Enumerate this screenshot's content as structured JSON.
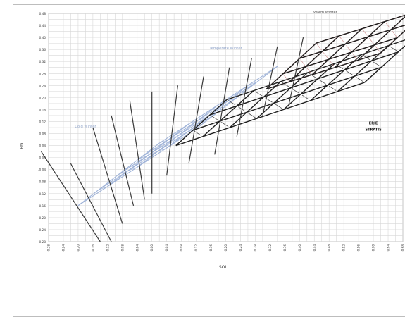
{
  "chart_data": {
    "type": "scatter",
    "title": "",
    "xlabel": "SOI",
    "ylabel": "Phi",
    "xlim": [
      -0.28,
      0.68
    ],
    "ylim": [
      -0.28,
      0.48
    ],
    "x_ticks": [
      -0.28,
      -0.26,
      -0.24,
      -0.22,
      -0.2,
      -0.18,
      -0.16,
      -0.14,
      -0.12,
      -0.1,
      -0.08,
      -0.06,
      -0.04,
      -0.02,
      0.0,
      0.02,
      0.04,
      0.06,
      0.08,
      0.1,
      0.12,
      0.14,
      0.16,
      0.18,
      0.2,
      0.22,
      0.24,
      0.26,
      0.28,
      0.3,
      0.32,
      0.34,
      0.36,
      0.38,
      0.4,
      0.42,
      0.44,
      0.46,
      0.48,
      0.5,
      0.52,
      0.54,
      0.56,
      0.58,
      0.6,
      0.62,
      0.64,
      0.66,
      0.68
    ],
    "x_tick_labels": [
      "-0.28",
      "",
      "-0.24",
      "",
      "-0.20",
      "",
      "-0.16",
      "",
      "-0.12",
      "",
      "-0.08",
      "",
      "-0.04",
      "",
      "0.00",
      "",
      "0.04",
      "",
      "0.08",
      "",
      "0.12",
      "",
      "0.16",
      "",
      "0.20",
      "",
      "0.24",
      "",
      "0.28",
      "",
      "0.32",
      "",
      "0.36",
      "",
      "0.40",
      "",
      "0.44",
      "",
      "0.48",
      "",
      "0.52",
      "",
      "0.56",
      "",
      "0.60",
      "",
      "0.64",
      "",
      "0.68"
    ],
    "y_ticks": [
      -0.28,
      -0.26,
      -0.24,
      -0.22,
      -0.2,
      -0.18,
      -0.16,
      -0.14,
      -0.12,
      -0.1,
      -0.08,
      -0.06,
      -0.04,
      -0.02,
      0.0,
      0.02,
      0.04,
      0.06,
      0.08,
      0.1,
      0.12,
      0.14,
      0.16,
      0.18,
      0.2,
      0.22,
      0.24,
      0.26,
      0.28,
      0.3,
      0.32,
      0.34,
      0.36,
      0.38,
      0.4,
      0.42,
      0.44,
      0.46,
      0.48
    ],
    "y_tick_labels": [
      "-0.28",
      "",
      "-0.24",
      "",
      "-0.20",
      "",
      "-0.16",
      "",
      "-0.12",
      "",
      "-0.08",
      "",
      "-0.04",
      "",
      "0.00",
      "",
      "0.04",
      "",
      "0.08",
      "",
      "0.12",
      "",
      "0.16",
      "",
      "0.20",
      "",
      "0.24",
      "",
      "0.28",
      "",
      "0.32",
      "",
      "0.36",
      "",
      "0.40",
      "",
      "0.44",
      "",
      "0.48"
    ],
    "grid": true,
    "annotations": [
      {
        "text": "Cold Winter",
        "x": -0.18,
        "y": 0.1,
        "color": "#8fa3c8"
      },
      {
        "text": "Temperate Winter",
        "x": 0.2,
        "y": 0.36,
        "color": "#8fa3c8"
      },
      {
        "text": "Warm Winter",
        "x": 0.47,
        "y": 0.48,
        "color": "#505050"
      },
      {
        "text": "ERIE",
        "x": 0.6,
        "y": 0.11,
        "color": "#111111"
      },
      {
        "text": "STRATIS",
        "x": 0.6,
        "y": 0.09,
        "color": "#111111"
      }
    ],
    "families": [
      {
        "name": "cold",
        "color": "#9fb3d8",
        "p00": [
          -0.2,
          -0.16
        ],
        "du": [
          0.055,
          0.052
        ],
        "dv": [
          0.08,
          0.064
        ],
        "nu": 4,
        "nv": 4
      },
      {
        "name": "temperate",
        "color": "#1e1e1e",
        "p00": [
          0.065,
          0.04
        ],
        "du": [
          0.073,
          0.03
        ],
        "dv": [
          0.046,
          0.051
        ],
        "nu": 7,
        "nv": 3
      },
      {
        "name": "warm",
        "color": "#c98484",
        "p00": [
          0.31,
          0.228
        ],
        "du": [
          0.062,
          0.024
        ],
        "dv": [
          0.045,
          0.051
        ],
        "nu": 5,
        "nv": 3
      },
      {
        "name": "warm-grid",
        "color": "#1e1e1e",
        "p00": [
          0.31,
          0.228
        ],
        "du": [
          0.062,
          0.024
        ],
        "dv": [
          0.045,
          0.051
        ],
        "nu": 5,
        "nv": 3
      }
    ],
    "steep_lines": [
      {
        "x1": -0.3,
        "y1": 0.02,
        "x2": -0.14,
        "y2": -0.28
      },
      {
        "x1": -0.22,
        "y1": -0.02,
        "x2": -0.11,
        "y2": -0.28
      },
      {
        "x1": -0.16,
        "y1": 0.1,
        "x2": -0.08,
        "y2": -0.22
      },
      {
        "x1": -0.11,
        "y1": 0.14,
        "x2": -0.05,
        "y2": -0.16
      },
      {
        "x1": -0.06,
        "y1": 0.19,
        "x2": -0.02,
        "y2": -0.14
      },
      {
        "x1": 0.0,
        "y1": 0.22,
        "x2": 0.0,
        "y2": -0.12
      },
      {
        "x1": 0.07,
        "y1": 0.24,
        "x2": 0.04,
        "y2": -0.06
      },
      {
        "x1": 0.14,
        "y1": 0.27,
        "x2": 0.1,
        "y2": -0.02
      },
      {
        "x1": 0.21,
        "y1": 0.3,
        "x2": 0.17,
        "y2": 0.01
      },
      {
        "x1": 0.27,
        "y1": 0.33,
        "x2": 0.23,
        "y2": 0.07
      },
      {
        "x1": 0.34,
        "y1": 0.37,
        "x2": 0.3,
        "y2": 0.14
      },
      {
        "x1": 0.41,
        "y1": 0.4,
        "x2": 0.37,
        "y2": 0.17
      }
    ]
  }
}
